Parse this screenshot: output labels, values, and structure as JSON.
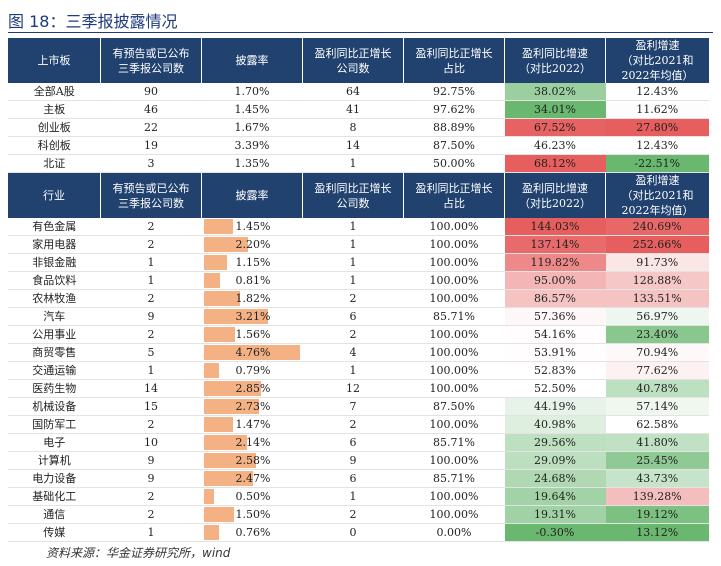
{
  "title": "图 18：三季报披露情况",
  "source": "资料来源：华金证券研究所，wind",
  "header1": [
    "上市板",
    "有预告或已公布\n三季报公司数",
    "披露率",
    "盈利同比正增长\n公司数",
    "盈利同比正增长\n占比",
    "盈利同比增速\n（对比2022）",
    "盈利增速\n（对比2021和\n2022年均值）"
  ],
  "boards": [
    {
      "name": "全部A股",
      "count": "90",
      "rate": "1.70%",
      "pos": "64",
      "share": "92.75%",
      "g22": "38.02%",
      "g2122": "12.43%"
    },
    {
      "name": "主板",
      "count": "46",
      "rate": "1.45%",
      "pos": "41",
      "share": "97.62%",
      "g22": "34.01%",
      "g2122": "11.62%"
    },
    {
      "name": "创业板",
      "count": "22",
      "rate": "1.67%",
      "pos": "8",
      "share": "88.89%",
      "g22": "67.52%",
      "g2122": "27.80%"
    },
    {
      "name": "科创板",
      "count": "19",
      "rate": "3.39%",
      "pos": "14",
      "share": "87.50%",
      "g22": "46.23%",
      "g2122": "12.43%"
    },
    {
      "name": "北证",
      "count": "3",
      "rate": "1.35%",
      "pos": "1",
      "share": "50.00%",
      "g22": "68.12%",
      "g2122": "-22.51%"
    }
  ],
  "header2": [
    "行业",
    "有预告或已公布\n三季报公司数",
    "披露率",
    "盈利同比正增长\n公司数",
    "盈利同比正增长\n占比",
    "盈利同比增速\n（对比2022）",
    "盈利增速\n（对比2021和\n2022年均值）"
  ],
  "industries": [
    {
      "name": "有色金属",
      "count": "2",
      "rate": "1.45%",
      "pos": "1",
      "share": "100.00%",
      "g22": "144.03%",
      "g2122": "240.69%"
    },
    {
      "name": "家用电器",
      "count": "2",
      "rate": "2.20%",
      "pos": "1",
      "share": "100.00%",
      "g22": "137.14%",
      "g2122": "252.66%"
    },
    {
      "name": "非银金融",
      "count": "1",
      "rate": "1.15%",
      "pos": "1",
      "share": "100.00%",
      "g22": "119.82%",
      "g2122": "91.73%"
    },
    {
      "name": "食品饮料",
      "count": "1",
      "rate": "0.81%",
      "pos": "1",
      "share": "100.00%",
      "g22": "95.00%",
      "g2122": "128.88%"
    },
    {
      "name": "农林牧渔",
      "count": "2",
      "rate": "1.82%",
      "pos": "2",
      "share": "100.00%",
      "g22": "86.57%",
      "g2122": "133.51%"
    },
    {
      "name": "汽车",
      "count": "9",
      "rate": "3.21%",
      "pos": "6",
      "share": "85.71%",
      "g22": "57.36%",
      "g2122": "56.97%"
    },
    {
      "name": "公用事业",
      "count": "2",
      "rate": "1.56%",
      "pos": "2",
      "share": "100.00%",
      "g22": "54.16%",
      "g2122": "23.40%"
    },
    {
      "name": "商贸零售",
      "count": "5",
      "rate": "4.76%",
      "pos": "4",
      "share": "100.00%",
      "g22": "53.91%",
      "g2122": "70.94%"
    },
    {
      "name": "交通运输",
      "count": "1",
      "rate": "0.79%",
      "pos": "1",
      "share": "100.00%",
      "g22": "52.83%",
      "g2122": "77.62%"
    },
    {
      "name": "医药生物",
      "count": "14",
      "rate": "2.85%",
      "pos": "12",
      "share": "100.00%",
      "g22": "52.50%",
      "g2122": "40.78%"
    },
    {
      "name": "机械设备",
      "count": "15",
      "rate": "2.73%",
      "pos": "7",
      "share": "87.50%",
      "g22": "44.19%",
      "g2122": "57.14%"
    },
    {
      "name": "国防军工",
      "count": "2",
      "rate": "1.47%",
      "pos": "2",
      "share": "100.00%",
      "g22": "40.98%",
      "g2122": "62.58%"
    },
    {
      "name": "电子",
      "count": "10",
      "rate": "2.14%",
      "pos": "6",
      "share": "85.71%",
      "g22": "29.56%",
      "g2122": "41.80%"
    },
    {
      "name": "计算机",
      "count": "9",
      "rate": "2.58%",
      "pos": "9",
      "share": "100.00%",
      "g22": "29.09%",
      "g2122": "25.45%"
    },
    {
      "name": "电力设备",
      "count": "9",
      "rate": "2.47%",
      "pos": "6",
      "share": "85.71%",
      "g22": "24.68%",
      "g2122": "43.73%"
    },
    {
      "name": "基础化工",
      "count": "2",
      "rate": "0.50%",
      "pos": "1",
      "share": "100.00%",
      "g22": "19.64%",
      "g2122": "139.28%"
    },
    {
      "name": "通信",
      "count": "2",
      "rate": "1.50%",
      "pos": "2",
      "share": "100.00%",
      "g22": "19.31%",
      "g2122": "19.12%"
    },
    {
      "name": "传媒",
      "count": "1",
      "rate": "0.76%",
      "pos": "0",
      "share": "0.00%",
      "g22": "-0.30%",
      "g2122": "13.12%"
    }
  ]
}
